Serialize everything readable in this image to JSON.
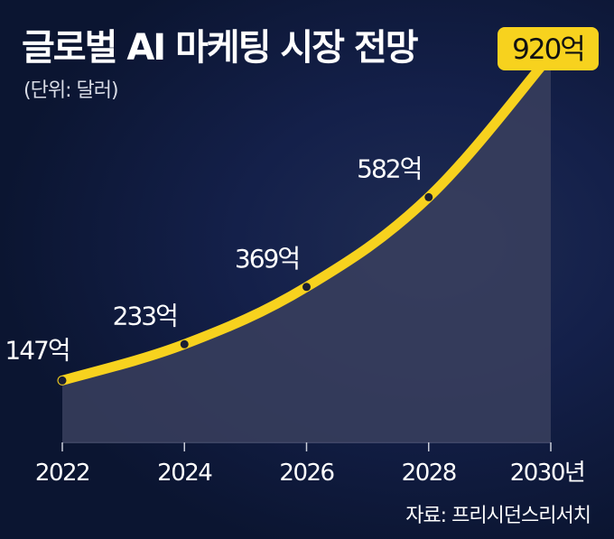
{
  "title": "글로벌 AI 마케팅 시장 전망",
  "unit_note": "(단위: 달러)",
  "source": "자료: 프리시던스리서치",
  "colors": {
    "line": "#f7d21e",
    "highlight_box": "#f7d21e",
    "area": "#3a3f5e",
    "point": "#1a1f33",
    "text": "#ffffff"
  },
  "chart_data": {
    "type": "line",
    "title": "글로벌 AI 마케팅 시장 전망",
    "ylabel": "(단위: 달러)",
    "categories": [
      "2022",
      "2024",
      "2026",
      "2028",
      "2030년"
    ],
    "x": [
      2022,
      2024,
      2026,
      2028,
      2030
    ],
    "values": [
      147,
      233,
      369,
      582,
      920
    ],
    "data_labels": [
      "147억",
      "233억",
      "369억",
      "582억",
      "920억"
    ],
    "highlight_index": 4,
    "ylim": [
      0,
      1050
    ],
    "grid": false,
    "legend": "none"
  }
}
